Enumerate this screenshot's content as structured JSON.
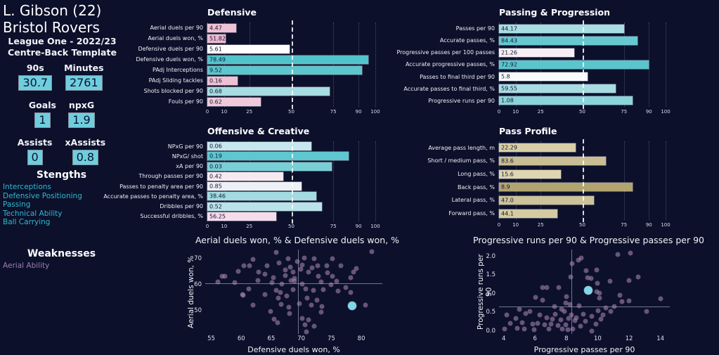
{
  "sidebar": {
    "player": "L. Gibson (22)",
    "team": "Bristol Rovers",
    "league": "League One - 2022/23",
    "template": "Centre-Back Template",
    "stats": [
      {
        "label": "90s",
        "value": "30.7"
      },
      {
        "label": "Minutes",
        "value": "2761"
      },
      {
        "label": "Goals",
        "value": "1"
      },
      {
        "label": "npxG",
        "value": "1.9"
      },
      {
        "label": "Assists",
        "value": "0"
      },
      {
        "label": "xAssists",
        "value": "0.8"
      }
    ],
    "strengths_title": "Stengths",
    "strengths": [
      "Interceptions",
      "Defensive Positioning",
      "Passing",
      "Technical Ability",
      "Ball Carrying"
    ],
    "weaknesses_title": "Weaknesses",
    "weaknesses": [
      "Aerial Ability"
    ]
  },
  "colors": {
    "background": "#0c102b",
    "stat_box": "#6fcede",
    "teal_bar": "#58c5cd",
    "pink_bar": "#ecb9d1",
    "tan_bar": "#cfc49a",
    "scatter_dot": "#a888b2",
    "highlight_dot": "#7fd7e8",
    "strength_text": "#2fb9cf",
    "weakness_text": "#9d7eb1"
  },
  "chart_data": [
    {
      "type": "bar",
      "id": "defensive",
      "title": "Defensive",
      "x_ticks": [
        0,
        10,
        25,
        50,
        75,
        90,
        100
      ],
      "xlim": [
        0,
        100
      ],
      "avg_line": 50,
      "rows": [
        {
          "label": "Aerial duels per 90",
          "value": "4.47",
          "percentile": 17,
          "color": "#eec1d5"
        },
        {
          "label": "Aerial duels won, %",
          "value": "51.82",
          "percentile": 11,
          "color": "#ecb9d1"
        },
        {
          "label": "Defensive duels per 90",
          "value": "5.61",
          "percentile": 49,
          "color": "#ffffff"
        },
        {
          "label": "Defensive duels won, %",
          "value": "78.49",
          "percentile": 96,
          "color": "#53c3cb"
        },
        {
          "label": "PAdj Interceptions",
          "value": "9.52",
          "percentile": 92,
          "color": "#5cc6cd"
        },
        {
          "label": "PAdj Sliding tackles",
          "value": "0.16",
          "percentile": 18,
          "color": "#edc0d4"
        },
        {
          "label": "Shots blocked per 90",
          "value": "0.68",
          "percentile": 73,
          "color": "#a6dce2"
        },
        {
          "label": "Fouls per 90",
          "value": "0.62",
          "percentile": 32,
          "color": "#f0cada"
        }
      ]
    },
    {
      "type": "bar",
      "id": "offensive",
      "title": "Offensive & Creative",
      "x_ticks": [
        0,
        10,
        25,
        50,
        75,
        90,
        100
      ],
      "xlim": [
        0,
        100
      ],
      "avg_line": 50,
      "rows": [
        {
          "label": "NPxG per 90",
          "value": "0.06",
          "percentile": 62,
          "color": "#c6e7ee"
        },
        {
          "label": "NPxG/ shot",
          "value": "0.19",
          "percentile": 84,
          "color": "#5ec7cf"
        },
        {
          "label": "xA per 90",
          "value": "0.03",
          "percentile": 74,
          "color": "#79cfd6"
        },
        {
          "label": "Through passes per 90",
          "value": "0.42",
          "percentile": 45,
          "color": "#f8e9f1"
        },
        {
          "label": "Passes to penalty area per 90",
          "value": "0.85",
          "percentile": 56,
          "color": "#eef0f5"
        },
        {
          "label": "Accurate passes to penalty area, %",
          "value": "38.46",
          "percentile": 65,
          "color": "#a2dbe1"
        },
        {
          "label": "Dribbles per 90",
          "value": "0.52",
          "percentile": 68,
          "color": "#b9e2e9"
        },
        {
          "label": "Successful dribbles, %",
          "value": "56.25",
          "percentile": 41,
          "color": "#f5dceb"
        }
      ]
    },
    {
      "type": "bar",
      "id": "passing",
      "title": "Passing & Progression",
      "x_ticks": [
        0,
        10,
        25,
        50,
        75,
        90,
        100
      ],
      "xlim": [
        0,
        100
      ],
      "avg_line": 50,
      "rows": [
        {
          "label": "Passes per 90",
          "value": "44.17",
          "percentile": 75,
          "color": "#a9dde4"
        },
        {
          "label": "Accurate passes, %",
          "value": "84.43",
          "percentile": 83,
          "color": "#66c9d1"
        },
        {
          "label": "Progressive passes per 100 passes",
          "value": "21.26",
          "percentile": 45,
          "color": "#f7eef4"
        },
        {
          "label": "Accurate progressive passes, %",
          "value": "72.92",
          "percentile": 90,
          "color": "#5ac5cd"
        },
        {
          "label": "Passes to final third per 90",
          "value": "5.8",
          "percentile": 53,
          "color": "#f8fafc"
        },
        {
          "label": "Accurate passes to final third, %",
          "value": "59.55",
          "percentile": 70,
          "color": "#a7dce3"
        },
        {
          "label": "Progressive runs per 90",
          "value": "1.08",
          "percentile": 80,
          "color": "#8bd4db"
        }
      ]
    },
    {
      "type": "bar",
      "id": "passprofile",
      "title": "Pass Profile",
      "x_ticks": [
        0,
        10,
        25,
        50,
        75,
        90,
        100
      ],
      "xlim": [
        0,
        100
      ],
      "avg_line": 50,
      "rows": [
        {
          "label": "Average pass length, m",
          "value": "22.29",
          "percentile": 46,
          "color": "#d8cea7"
        },
        {
          "label": "Short / medium pass, %",
          "value": "83.6",
          "percentile": 64,
          "color": "#c9bd93"
        },
        {
          "label": "Long pass, %",
          "value": "15.6",
          "percentile": 37,
          "color": "#ded5b1"
        },
        {
          "label": "Back pass, %",
          "value": "8.9",
          "percentile": 80,
          "color": "#b1a46f"
        },
        {
          "label": "Lateral pass, %",
          "value": "47.0",
          "percentile": 57,
          "color": "#cdc298"
        },
        {
          "label": "Forward pass, %",
          "value": "44.1",
          "percentile": 35,
          "color": "#d5cba2"
        }
      ]
    },
    {
      "type": "scatter",
      "id": "scatter1",
      "title": "Aerial duels won, % & Defensive duels won, %",
      "xlabel": "Defensive duels won, %",
      "ylabel": "Aerial duels won, %",
      "xlim": [
        54,
        83.5
      ],
      "ylim": [
        41,
        73.5
      ],
      "x_ticks": [
        "55",
        "60",
        "65",
        "70",
        "75",
        "80"
      ],
      "y_ticks": [
        "50",
        "60",
        "70"
      ],
      "avg_x": 69.5,
      "avg_y": 60.6,
      "highlight": {
        "x": 78.49,
        "y": 51.82
      },
      "points": [
        [
          65.8,
          72.5
        ],
        [
          81.7,
          72.7
        ],
        [
          62.0,
          69.7
        ],
        [
          67.8,
          70.1
        ],
        [
          70.5,
          70.3
        ],
        [
          72.2,
          70.0
        ],
        [
          75.2,
          70.1
        ],
        [
          69.3,
          68.9
        ],
        [
          66.3,
          68.3
        ],
        [
          60.4,
          67.3
        ],
        [
          61.4,
          67.4
        ],
        [
          64.3,
          67.2
        ],
        [
          68.2,
          66.7
        ],
        [
          70.2,
          67.6
        ],
        [
          72.7,
          67.3
        ],
        [
          74.3,
          67.4
        ],
        [
          76.6,
          67.3
        ],
        [
          71.8,
          66.5
        ],
        [
          59.5,
          65.1
        ],
        [
          62.9,
          64.9
        ],
        [
          67.3,
          65.6
        ],
        [
          68.6,
          64.9
        ],
        [
          71.2,
          64.8
        ],
        [
          74.4,
          64.6
        ],
        [
          78.7,
          64.9
        ],
        [
          79.2,
          66.2
        ],
        [
          64.0,
          63.9
        ],
        [
          69.9,
          65.8
        ],
        [
          57.3,
          63.1
        ],
        [
          56.8,
          63.2
        ],
        [
          65.3,
          62.8
        ],
        [
          67.4,
          63.4
        ],
        [
          68.9,
          62.3
        ],
        [
          75.2,
          63.1
        ],
        [
          78.2,
          62.8
        ],
        [
          72.8,
          63.2
        ],
        [
          56.1,
          61.0
        ],
        [
          58.9,
          60.9
        ],
        [
          62.8,
          61.5
        ],
        [
          65.1,
          60.7
        ],
        [
          66.8,
          60.1
        ],
        [
          68.9,
          61.2
        ],
        [
          70.1,
          60.1
        ],
        [
          73.3,
          61.0
        ],
        [
          74.9,
          59.9
        ],
        [
          68.3,
          61.5
        ],
        [
          75.9,
          61.2
        ],
        [
          61.3,
          58.2
        ],
        [
          65.8,
          57.7
        ],
        [
          66.5,
          56.9
        ],
        [
          68.6,
          58.0
        ],
        [
          70.7,
          58.2
        ],
        [
          72.0,
          57.7
        ],
        [
          73.7,
          58.0
        ],
        [
          76.1,
          57.4
        ],
        [
          77.4,
          58.8
        ],
        [
          60.3,
          55.8
        ],
        [
          60.2,
          56.3
        ],
        [
          63.9,
          56.1
        ],
        [
          66.2,
          54.7
        ],
        [
          67.6,
          55.5
        ],
        [
          71.0,
          54.9
        ],
        [
          72.6,
          54.1
        ],
        [
          78.2,
          56.9
        ],
        [
          62.0,
          52.2
        ],
        [
          66.7,
          52.5
        ],
        [
          67.9,
          51.4
        ],
        [
          69.7,
          52.7
        ],
        [
          71.7,
          52.2
        ],
        [
          73.4,
          51.6
        ],
        [
          80.7,
          52.2
        ],
        [
          64.9,
          49.7
        ],
        [
          68.0,
          48.9
        ],
        [
          73.3,
          49.4
        ],
        [
          65.5,
          46.7
        ],
        [
          66.0,
          45.3
        ],
        [
          70.1,
          47.0
        ],
        [
          71.2,
          46.4
        ],
        [
          70.6,
          44.5
        ],
        [
          72.2,
          44.0
        ],
        [
          70.9,
          41.8
        ]
      ]
    },
    {
      "type": "scatter",
      "id": "scatter2",
      "title": "Progressive runs per 90 & Progressive passes per 90",
      "xlabel": "Progressive passes per 90",
      "ylabel": "Progressive runs per 90",
      "xlim": [
        3.7,
        14.6
      ],
      "ylim": [
        -0.08,
        2.18
      ],
      "x_ticks": [
        "4",
        "6",
        "8",
        "10",
        "12",
        "14"
      ],
      "y_ticks": [
        "0.0",
        "0.5",
        "1.0",
        "1.5",
        "2.0"
      ],
      "avg_x": 8.33,
      "avg_y": 0.66,
      "highlight": {
        "x": 9.39,
        "y": 1.08
      },
      "points": [
        [
          11.3,
          2.04
        ],
        [
          12.1,
          2.08
        ],
        [
          8.75,
          1.89
        ],
        [
          8.96,
          1.95
        ],
        [
          8.37,
          1.8
        ],
        [
          9.25,
          1.61
        ],
        [
          9.93,
          1.63
        ],
        [
          12.6,
          1.45
        ],
        [
          8.28,
          1.45
        ],
        [
          9.34,
          1.43
        ],
        [
          9.58,
          1.41
        ],
        [
          10.77,
          1.34
        ],
        [
          12.0,
          1.36
        ],
        [
          10.0,
          1.28
        ],
        [
          6.47,
          1.17
        ],
        [
          6.73,
          1.17
        ],
        [
          7.52,
          1.16
        ],
        [
          9.93,
          1.05
        ],
        [
          10.1,
          1.01
        ],
        [
          11.4,
          0.95
        ],
        [
          6.03,
          0.9
        ],
        [
          7.99,
          0.92
        ],
        [
          14.0,
          0.86
        ],
        [
          6.49,
          0.83
        ],
        [
          10.1,
          0.88
        ],
        [
          11.55,
          0.79
        ],
        [
          11.98,
          0.81
        ],
        [
          7.96,
          0.75
        ],
        [
          8.21,
          0.72
        ],
        [
          7.26,
          0.66
        ],
        [
          8.8,
          0.68
        ],
        [
          11.06,
          0.66
        ],
        [
          10.5,
          0.62
        ],
        [
          5.0,
          0.57
        ],
        [
          5.69,
          0.53
        ],
        [
          7.71,
          0.57
        ],
        [
          7.85,
          0.53
        ],
        [
          10.04,
          0.55
        ],
        [
          10.84,
          0.53
        ],
        [
          13.1,
          0.53
        ],
        [
          4.18,
          0.42
        ],
        [
          5.42,
          0.46
        ],
        [
          6.28,
          0.42
        ],
        [
          8.31,
          0.42
        ],
        [
          9.1,
          0.44
        ],
        [
          9.61,
          0.4
        ],
        [
          10.36,
          0.42
        ],
        [
          7.3,
          0.45
        ],
        [
          4.77,
          0.33
        ],
        [
          6.77,
          0.35
        ],
        [
          7.1,
          0.31
        ],
        [
          7.66,
          0.29
        ],
        [
          8.13,
          0.33
        ],
        [
          8.53,
          0.28
        ],
        [
          8.65,
          0.35
        ],
        [
          4.43,
          0.2
        ],
        [
          5.17,
          0.22
        ],
        [
          5.85,
          0.18
        ],
        [
          6.15,
          0.2
        ],
        [
          6.6,
          0.17
        ],
        [
          7.02,
          0.18
        ],
        [
          7.49,
          0.15
        ],
        [
          7.96,
          0.17
        ],
        [
          9.2,
          0.25
        ],
        [
          10.2,
          0.32
        ],
        [
          9.9,
          0.18
        ],
        [
          4.07,
          0.06
        ],
        [
          4.85,
          0.08
        ],
        [
          5.33,
          0.05
        ],
        [
          5.93,
          0.04
        ],
        [
          7.75,
          0.06
        ],
        [
          8.08,
          0.04
        ],
        [
          8.41,
          0.06
        ],
        [
          9.61,
          0.0
        ],
        [
          6.9,
          0.05
        ],
        [
          8.9,
          0.12
        ]
      ]
    }
  ]
}
